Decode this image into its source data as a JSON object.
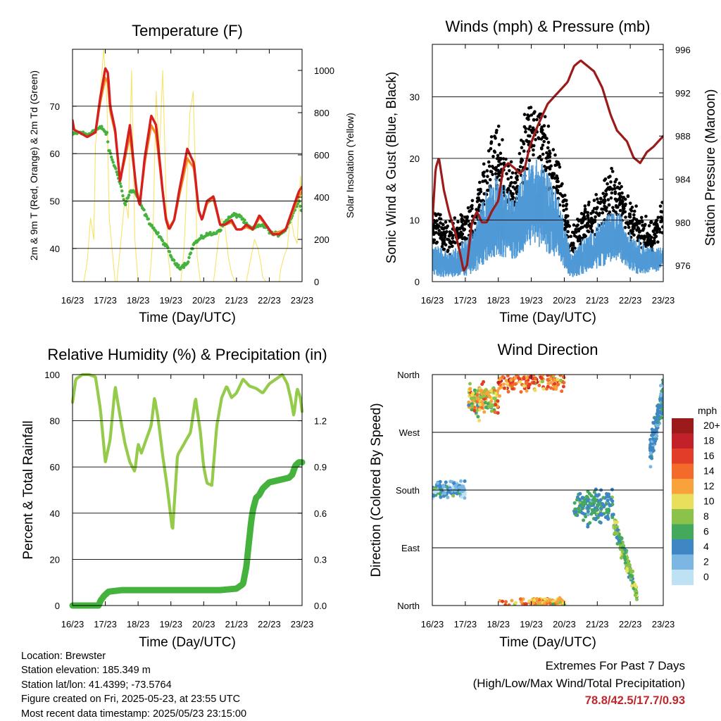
{
  "figure": {
    "colors": {
      "temp_2m": "#d62020",
      "temp_9m": "#f08a24",
      "dewpoint": "#44b23c",
      "solar": "#f8e36a",
      "wind": "#4f99d6",
      "gust": "#000000",
      "pressure": "#9c1a1a",
      "rh": "#95cb4a",
      "precip": "#44b23c",
      "extremes": "#c0272d"
    }
  },
  "chart_data": [
    {
      "id": "temperature",
      "type": "line",
      "title": "Temperature (F)",
      "xlabel": "Time (Day/UTC)",
      "ylabel": "2m & 9m T (Red, Orange) & 2m Td (Green)",
      "ylabel_right": "Solar Insolation (Yellow)",
      "x_ticks": [
        "16/23",
        "17/23",
        "18/23",
        "19/23",
        "20/23",
        "21/23",
        "22/23",
        "23/23"
      ],
      "xlim": [
        0,
        7
      ],
      "ylim": [
        33,
        82
      ],
      "y_ticks": [
        40,
        50,
        60,
        70
      ],
      "ylim_right": [
        0,
        1100
      ],
      "y_ticks_right": [
        0,
        200,
        400,
        600,
        800,
        1000
      ],
      "grid": "horizontal",
      "series": [
        {
          "key": "temp_2m",
          "axis": "left",
          "x": [
            0,
            0.05,
            0.2,
            0.45,
            0.7,
            0.85,
            1.0,
            1.08,
            1.15,
            1.3,
            1.45,
            1.6,
            1.75,
            1.95,
            2.05,
            2.2,
            2.4,
            2.55,
            2.75,
            2.85,
            2.95,
            3.1,
            3.25,
            3.5,
            3.7,
            3.85,
            3.95,
            4.1,
            4.3,
            4.5,
            4.65,
            4.85,
            5.0,
            5.15,
            5.3,
            5.5,
            5.7,
            5.9,
            6.1,
            6.3,
            6.5,
            6.7,
            6.9,
            7.0
          ],
          "y": [
            67,
            65,
            64.5,
            63.5,
            64.5,
            72,
            78,
            77,
            70,
            65,
            54,
            60,
            66,
            52,
            49,
            59,
            68,
            66,
            52,
            46,
            44,
            46,
            52,
            61,
            58,
            48,
            46,
            50,
            51,
            45,
            45,
            46,
            44,
            44,
            45,
            44,
            47,
            45,
            43,
            43,
            44,
            48,
            52,
            53
          ]
        },
        {
          "key": "temp_9m",
          "axis": "left",
          "x": [
            0,
            0.05,
            0.2,
            0.45,
            0.7,
            0.85,
            1.0,
            1.08,
            1.15,
            1.3,
            1.45,
            1.6,
            1.75,
            1.95,
            2.05,
            2.2,
            2.4,
            2.55,
            2.75,
            2.85,
            2.95,
            3.1,
            3.25,
            3.5,
            3.7,
            3.85,
            3.95,
            4.1,
            4.3,
            4.5,
            4.65,
            4.85,
            5.0,
            5.15,
            5.3,
            5.5,
            5.7,
            5.9,
            6.1,
            6.3,
            6.5,
            6.7,
            6.9,
            7.0
          ],
          "y": [
            66.5,
            65,
            64.5,
            63.5,
            64.5,
            71,
            76,
            75,
            69,
            64.5,
            54.5,
            59,
            64,
            52.5,
            49.5,
            58,
            66,
            64,
            52,
            46.5,
            44.5,
            46,
            51,
            59,
            57,
            48,
            46,
            49.5,
            50.5,
            45,
            45,
            45.5,
            44,
            44,
            44.5,
            44,
            46.5,
            45,
            43,
            43.5,
            44,
            47.5,
            51,
            52
          ]
        },
        {
          "key": "dewpoint",
          "axis": "left",
          "x": [
            0,
            0.2,
            0.45,
            0.7,
            0.9,
            1.05,
            1.1,
            1.3,
            1.45,
            1.6,
            1.75,
            1.9,
            2.1,
            2.3,
            2.5,
            2.7,
            2.9,
            3.1,
            3.3,
            3.5,
            3.7,
            3.9,
            4.1,
            4.3,
            4.5,
            4.7,
            4.9,
            5.1,
            5.3,
            5.5,
            5.7,
            5.9,
            6.1,
            6.3,
            6.5,
            6.7,
            6.9,
            7.0
          ],
          "y": [
            64,
            64.5,
            64,
            65,
            65.5,
            64,
            61,
            57,
            54,
            49,
            52,
            52,
            49,
            46,
            44,
            42,
            40,
            37,
            36,
            37,
            41,
            42,
            43,
            43,
            44,
            46,
            47,
            47,
            45,
            44,
            45,
            44.5,
            43,
            43,
            44,
            47,
            50,
            48
          ]
        },
        {
          "key": "solar",
          "axis": "right",
          "x": [
            0,
            0.35,
            0.45,
            0.55,
            0.65,
            0.7,
            0.8,
            0.95,
            1.05,
            1.12,
            1.3,
            1.35,
            1.45,
            1.6,
            1.7,
            1.8,
            1.9,
            2.0,
            2.1,
            2.35,
            2.45,
            2.55,
            2.65,
            2.75,
            2.9,
            3.0,
            3.3,
            3.4,
            3.5,
            3.58,
            3.68,
            3.75,
            3.8,
            3.9,
            4.0,
            4.1,
            4.3,
            4.35,
            4.45,
            4.55,
            4.65,
            4.75,
            4.85,
            4.95,
            5.3,
            5.35,
            5.45,
            5.55,
            5.65,
            5.75,
            5.8,
            5.9,
            6.3,
            6.35,
            6.45,
            6.55,
            6.65,
            6.75,
            6.85,
            6.95,
            7.0
          ],
          "y": [
            0,
            0,
            100,
            300,
            200,
            650,
            800,
            1100,
            850,
            300,
            0,
            0,
            150,
            400,
            300,
            1000,
            200,
            0,
            0,
            0,
            200,
            900,
            600,
            1000,
            150,
            0,
            0,
            150,
            500,
            800,
            900,
            500,
            120,
            0,
            0,
            0,
            0,
            60,
            200,
            300,
            260,
            120,
            40,
            0,
            0,
            40,
            120,
            200,
            160,
            80,
            20,
            0,
            0,
            60,
            120,
            160,
            320,
            220,
            180,
            500,
            360
          ]
        }
      ]
    },
    {
      "id": "winds",
      "type": "scatter",
      "title": "Winds (mph) & Pressure (mb)",
      "xlabel": "Time (Day/UTC)",
      "ylabel": "Sonic Wind & Gust (Blue, Black)",
      "ylabel_right": "Station Pressure (Maroon)",
      "x_ticks": [
        "16/23",
        "17/23",
        "18/23",
        "19/23",
        "20/23",
        "21/23",
        "22/23",
        "23/23"
      ],
      "xlim": [
        0,
        7
      ],
      "ylim": [
        0,
        38.5
      ],
      "y_ticks": [
        0,
        10,
        20,
        30
      ],
      "ylim_right": [
        974.5,
        996.5
      ],
      "y_ticks_right": [
        976,
        980,
        984,
        988,
        992,
        996
      ],
      "grid": "horizontal",
      "series": [
        {
          "key": "gust",
          "axis": "left",
          "style": "scatter",
          "x": [
            0,
            0.5,
            1.0,
            1.3,
            1.6,
            1.9,
            2.2,
            2.5,
            2.8,
            3.1,
            3.4,
            3.7,
            4.0,
            4.2,
            4.5,
            4.8,
            5.1,
            5.4,
            5.7,
            6.0,
            6.3,
            6.6,
            6.9,
            7.0
          ],
          "y": [
            9,
            7,
            8,
            10,
            16,
            20,
            17,
            14,
            22,
            25,
            22,
            18,
            12,
            6,
            9,
            10,
            12,
            14,
            14,
            10,
            8,
            7,
            9,
            11
          ],
          "spread": [
            5,
            4,
            5,
            6,
            7,
            8,
            7,
            6,
            8,
            9,
            8,
            7,
            5,
            4,
            5,
            5,
            5,
            6,
            6,
            5,
            4,
            4,
            4,
            3
          ]
        },
        {
          "key": "wind",
          "axis": "left",
          "style": "band",
          "x": [
            0,
            0.5,
            1.0,
            1.3,
            1.6,
            1.9,
            2.2,
            2.5,
            2.8,
            3.1,
            3.4,
            3.7,
            4.0,
            4.2,
            4.5,
            4.8,
            5.1,
            5.4,
            5.7,
            6.0,
            6.3,
            6.6,
            6.9,
            7.0
          ],
          "y": [
            3,
            2,
            3,
            4,
            7,
            9,
            8,
            7,
            10,
            11,
            10,
            8,
            5,
            2,
            3,
            4,
            5,
            6,
            6,
            4,
            3,
            3,
            3,
            4
          ],
          "spread": [
            3,
            2,
            3,
            4,
            6,
            7,
            6,
            5,
            7,
            7,
            7,
            6,
            4,
            2,
            3,
            3,
            4,
            4,
            4,
            3,
            3,
            2,
            2,
            2
          ]
        },
        {
          "key": "pressure",
          "axis": "right",
          "style": "line",
          "x": [
            0,
            0.1,
            0.2,
            0.35,
            0.5,
            0.7,
            0.85,
            0.95,
            1.05,
            1.2,
            1.35,
            1.5,
            1.65,
            1.8,
            2.0,
            2.15,
            2.3,
            2.5,
            2.65,
            2.8,
            2.95,
            3.2,
            3.5,
            3.8,
            4.1,
            4.3,
            4.5,
            4.7,
            4.9,
            5.15,
            5.4,
            5.6,
            5.9,
            6.1,
            6.3,
            6.5,
            6.7,
            7.0
          ],
          "y": [
            980,
            985,
            986,
            983,
            981,
            979,
            977,
            975.5,
            976,
            980,
            981,
            980,
            980,
            981,
            982,
            985,
            985.5,
            985,
            984.5,
            985,
            987,
            989,
            991,
            992,
            993,
            994.5,
            995,
            994.5,
            994,
            992.5,
            990,
            988.5,
            987.5,
            986,
            985.5,
            986.5,
            987,
            988
          ]
        }
      ]
    },
    {
      "id": "humidity",
      "type": "line",
      "title": "Relative Humidity (%) & Precipitation (in)",
      "xlabel": "Time (Day/UTC)",
      "ylabel": "Percent & Total Rainfall",
      "x_ticks": [
        "16/23",
        "17/23",
        "18/23",
        "19/23",
        "20/23",
        "21/23",
        "22/23",
        "23/23"
      ],
      "xlim": [
        0,
        7
      ],
      "ylim": [
        0,
        100
      ],
      "y_ticks": [
        0,
        20,
        40,
        60,
        80,
        100
      ],
      "ylim_right": [
        0,
        1.5
      ],
      "y_ticks_right": [
        "0.0",
        "0.3",
        "0.6",
        "0.9",
        "1.2"
      ],
      "grid": "horizontal",
      "series": [
        {
          "key": "rh",
          "axis": "left",
          "x": [
            0,
            0.1,
            0.3,
            0.5,
            0.7,
            0.85,
            1.0,
            1.15,
            1.3,
            1.45,
            1.6,
            1.75,
            1.9,
            2.0,
            2.1,
            2.25,
            2.4,
            2.5,
            2.6,
            2.75,
            2.9,
            3.05,
            3.2,
            3.4,
            3.6,
            3.75,
            3.9,
            4.0,
            4.1,
            4.25,
            4.4,
            4.55,
            4.7,
            4.85,
            5.0,
            5.2,
            5.4,
            5.6,
            5.8,
            6.0,
            6.2,
            6.4,
            6.55,
            6.65,
            6.75,
            6.85,
            6.95,
            7.0
          ],
          "y": [
            88,
            98,
            100,
            100,
            99,
            85,
            62,
            72,
            95,
            82,
            70,
            62,
            58,
            70,
            66,
            72,
            78,
            90,
            82,
            65,
            50,
            32,
            65,
            70,
            75,
            90,
            75,
            60,
            53,
            52,
            78,
            90,
            95,
            90,
            92,
            98,
            95,
            94,
            92,
            96,
            98,
            100,
            96,
            90,
            82,
            94,
            90,
            84
          ]
        },
        {
          "key": "precip",
          "axis": "right",
          "x": [
            0,
            0.8,
            0.85,
            0.95,
            1.1,
            1.5,
            2.5,
            3.5,
            4.5,
            5.0,
            5.2,
            5.3,
            5.4,
            5.45,
            5.5,
            5.6,
            5.7,
            5.8,
            6.0,
            6.2,
            6.4,
            6.6,
            6.7,
            6.8,
            6.9,
            7.0
          ],
          "y": [
            0,
            0,
            0.03,
            0.06,
            0.09,
            0.1,
            0.1,
            0.1,
            0.1,
            0.11,
            0.14,
            0.25,
            0.45,
            0.55,
            0.62,
            0.7,
            0.72,
            0.76,
            0.8,
            0.81,
            0.82,
            0.83,
            0.85,
            0.91,
            0.93,
            0.93
          ]
        }
      ]
    },
    {
      "id": "direction",
      "type": "scatter",
      "title": "Wind Direction",
      "xlabel": "Time (Day/UTC)",
      "ylabel": "Direction (Colored By Speed)",
      "x_ticks": [
        "16/23",
        "17/23",
        "18/23",
        "19/23",
        "20/23",
        "21/23",
        "22/23",
        "23/23"
      ],
      "xlim": [
        0,
        7
      ],
      "ylim": [
        0,
        360
      ],
      "y_tick_labels": [
        "North",
        "East",
        "South",
        "West",
        "North"
      ],
      "y_tick_values": [
        0,
        90,
        180,
        270,
        360
      ],
      "grid": "horizontal",
      "colorbar": {
        "title": "mph",
        "labels": [
          "20+",
          "18",
          "16",
          "14",
          "12",
          "10",
          "8",
          "6",
          "4",
          "2",
          "0"
        ],
        "colors": [
          "#9b1a1a",
          "#c3212a",
          "#e23d28",
          "#f36a2a",
          "#f9a23c",
          "#e9df5a",
          "#8bc24a",
          "#44a95c",
          "#3f86c4",
          "#7bb7e2",
          "#bfe1f4"
        ]
      },
      "clusters": [
        {
          "x": [
            0,
            1.0
          ],
          "dir": [
            180,
            10
          ],
          "speed": [
            3,
            3
          ]
        },
        {
          "x": [
            1.1,
            2.0
          ],
          "dir": [
            320,
            20
          ],
          "speed": [
            10,
            5
          ]
        },
        {
          "x": [
            2.0,
            4.0
          ],
          "dir": [
            350,
            15
          ],
          "speed": [
            14,
            5
          ]
        },
        {
          "x": [
            3.0,
            4.0
          ],
          "dir": [
            5,
            5
          ],
          "speed": [
            12,
            4
          ]
        },
        {
          "x": [
            4.3,
            5.5
          ],
          "dir": [
            155,
            20
          ],
          "speed": [
            5,
            2
          ]
        },
        {
          "x": [
            5.5,
            6.2
          ],
          "dir": [
            60,
            30
          ],
          "speed": [
            7,
            3
          ]
        },
        {
          "x": [
            6.6,
            7.0
          ],
          "dir": [
            320,
            30
          ],
          "speed": [
            4,
            2
          ]
        }
      ]
    }
  ],
  "info": {
    "location": "Location: Brewster",
    "elevation": "Station elevation: 185.349 m",
    "latlon": "Station lat/lon: 41.4399; -73.5764",
    "created": "Figure created on Fri, 2025-05-23, at 23:55 UTC",
    "recent": "Most recent data timestamp: 2025/05/23 23:15:00"
  },
  "extremes": {
    "title": "Extremes For Past 7 Days",
    "subtitle": "(High/Low/Max Wind/Total Precipitation)",
    "value": "78.8/42.5/17.7/0.93"
  }
}
